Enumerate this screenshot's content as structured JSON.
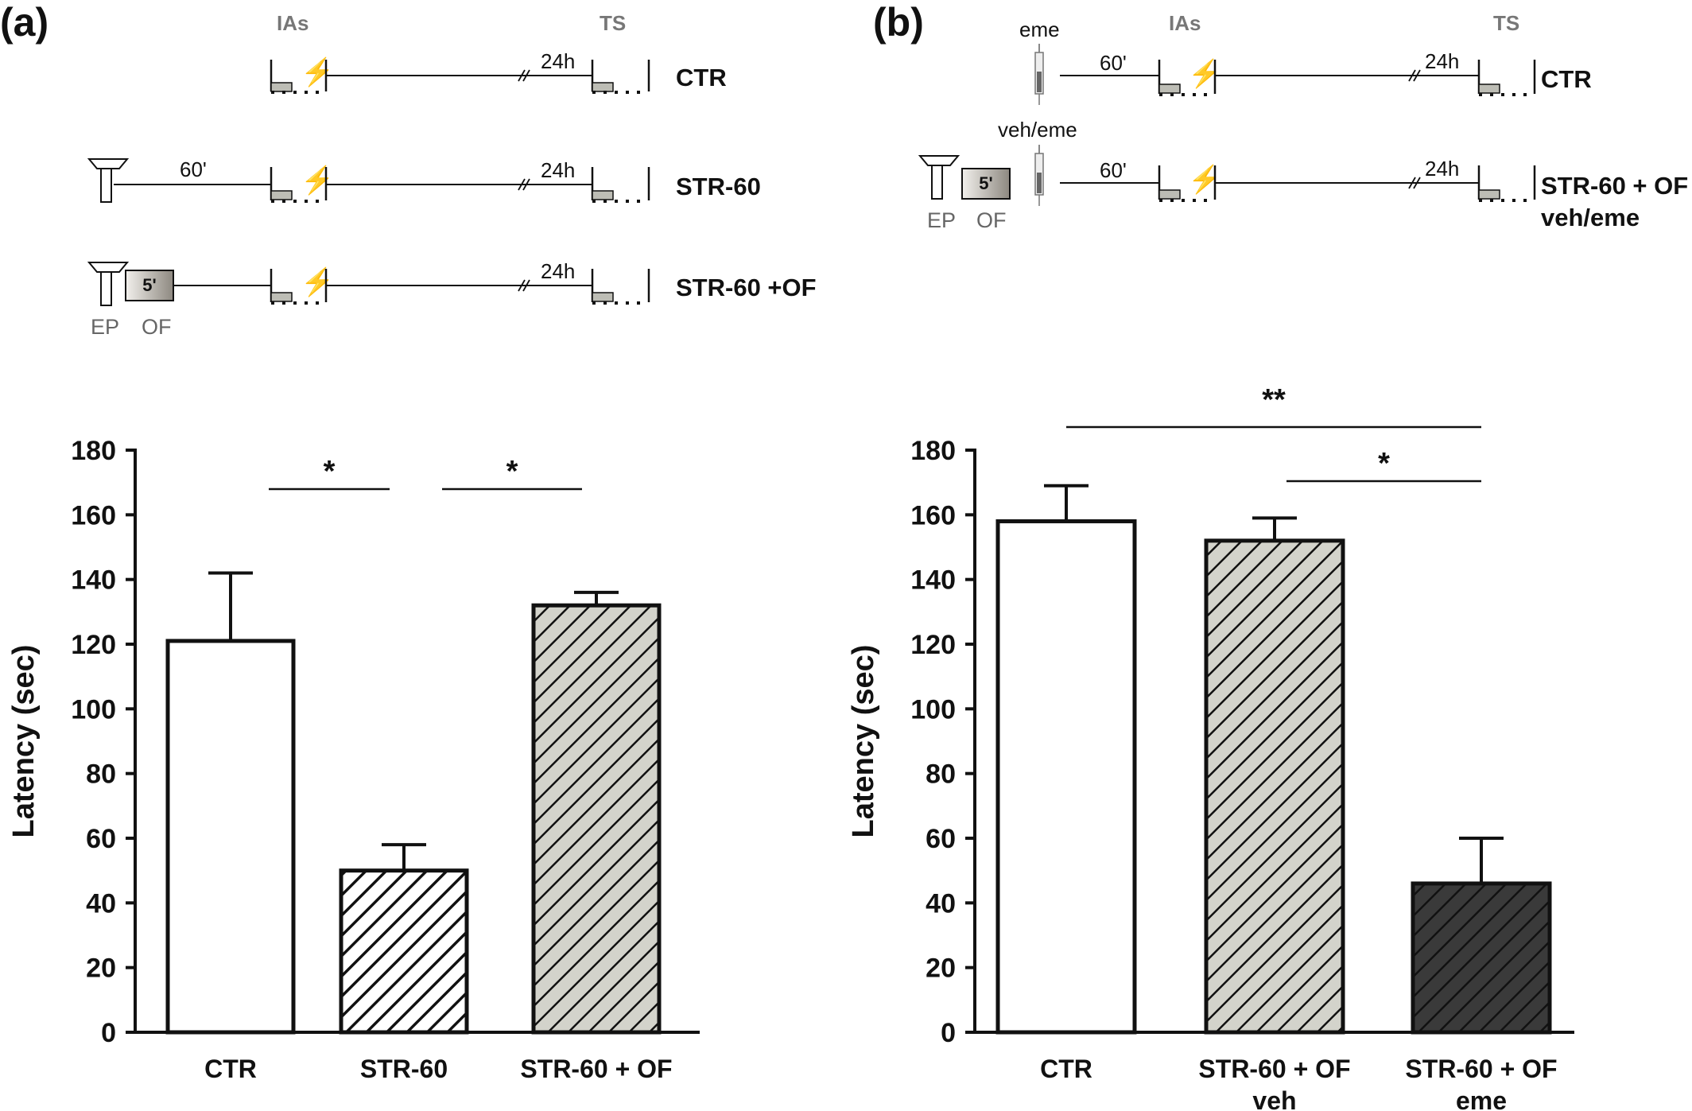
{
  "panels": [
    {
      "id": "a",
      "letter": "(a)",
      "protocol": {
        "ias_label": "IAs",
        "ts_label": "TS",
        "rows": [
          {
            "label": "CTR",
            "delay": "24h"
          },
          {
            "label": "STR-60",
            "pre": "60'",
            "delay": "24h"
          },
          {
            "label": "STR-60 +OF",
            "box": "5'",
            "delay": "24h",
            "ep": "EP",
            "of": "OF"
          }
        ]
      }
    },
    {
      "id": "b",
      "letter": "(b)",
      "protocol": {
        "ias_label": "IAs",
        "ts_label": "TS",
        "rows": [
          {
            "label": "CTR",
            "drug": "eme",
            "pre": "60'",
            "delay": "24h"
          },
          {
            "label": "STR-60 + OF",
            "label2": "veh/eme",
            "drug": "veh/eme",
            "pre": "60'",
            "box": "5'",
            "delay": "24h",
            "ep": "EP",
            "of": "OF"
          }
        ]
      }
    }
  ],
  "chart_data": [
    {
      "type": "bar",
      "panel": "a",
      "ylabel": "Latency (sec)",
      "ylim": [
        0,
        180
      ],
      "yticks": [
        "0",
        "20",
        "40",
        "60",
        "80",
        "100",
        "120",
        "140",
        "160",
        "180"
      ],
      "categories": [
        [
          "CTR"
        ],
        [
          "STR-60"
        ],
        [
          "STR-60 + OF"
        ]
      ],
      "values": [
        121,
        50,
        132
      ],
      "errors": [
        21,
        8,
        4
      ],
      "fills": [
        "white",
        "hatch-white",
        "hatch-gray"
      ],
      "significance": [
        {
          "from": 0,
          "to": 1,
          "label": "*"
        },
        {
          "from": 1,
          "to": 2,
          "label": "*"
        }
      ]
    },
    {
      "type": "bar",
      "panel": "b",
      "ylabel": "Latency (sec)",
      "ylim": [
        0,
        180
      ],
      "yticks": [
        "0",
        "20",
        "40",
        "60",
        "80",
        "100",
        "120",
        "140",
        "160",
        "180"
      ],
      "categories": [
        [
          "CTR"
        ],
        [
          "STR-60 + OF",
          "veh"
        ],
        [
          "STR-60 + OF",
          "eme"
        ]
      ],
      "values": [
        158,
        152,
        46
      ],
      "errors": [
        11,
        7,
        14
      ],
      "fills": [
        "white",
        "hatch-gray",
        "hatch-dark"
      ],
      "significance": [
        {
          "from": 0,
          "to": 2,
          "label": "**"
        },
        {
          "from": 1,
          "to": 2,
          "label": "*"
        }
      ]
    }
  ],
  "colors": {
    "ink": "#111111",
    "bar_gray": "#d3d3cb",
    "bar_dark": "#3a3a3a",
    "phase_gray": "#777777",
    "platform": "#bdbdb5"
  }
}
